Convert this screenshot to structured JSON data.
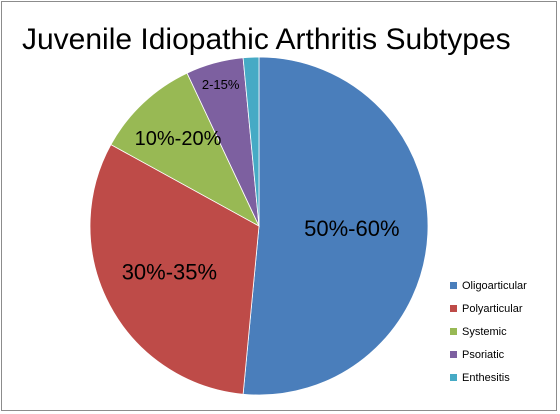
{
  "chart_data": {
    "type": "pie",
    "title": "Juvenile Idiopathic Arthritis Subtypes",
    "categories": [
      "Oligoarticular",
      "Polyarticular",
      "Systemic",
      "Psoriatic",
      "Enthesitis"
    ],
    "values": [
      51.5,
      31.5,
      10.0,
      5.5,
      1.5
    ],
    "data_labels": [
      "50%-60%",
      "30%-35%",
      "10%-20%",
      "2-15%",
      ""
    ],
    "colors": [
      "#4A7EBB",
      "#BE4B48",
      "#98B954",
      "#7D60A0",
      "#46AAC5"
    ],
    "start_angle_deg": 0,
    "direction": "clockwise",
    "legend_position": "right",
    "grid": false
  }
}
